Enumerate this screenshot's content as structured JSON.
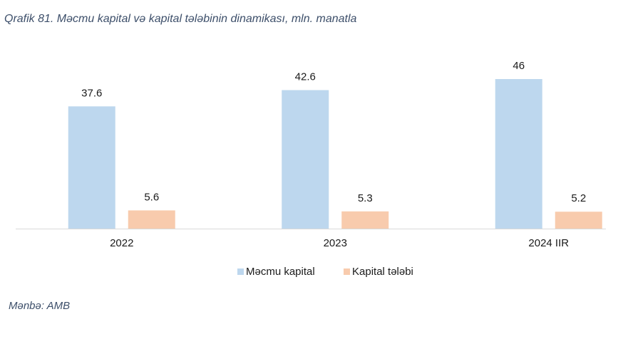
{
  "chart_data": {
    "type": "bar",
    "title": "Qrafik 81. Məcmu kapital və kapital tələbinin dinamikası, mln. manatla",
    "categories": [
      "2022",
      "2023",
      "2024  IIR"
    ],
    "series": [
      {
        "name": "Məcmu kapital",
        "color": "#bdd7ee",
        "values": [
          37.6,
          42.6,
          46
        ]
      },
      {
        "name": "Kapital tələbi",
        "color": "#f8cbad",
        "values": [
          5.6,
          5.3,
          5.2
        ]
      }
    ],
    "source": "Mənbə: AMB"
  }
}
